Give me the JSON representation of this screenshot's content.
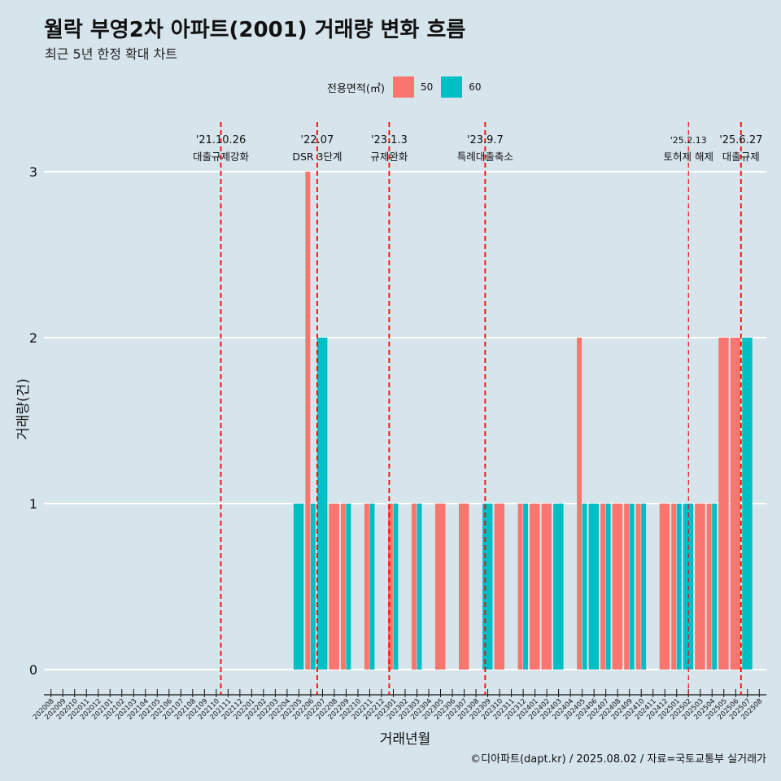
{
  "header": {
    "title": "월락 부영2차 아파트(2001) 거래량 변화 흐름",
    "subtitle": "최근 5년 한정 확대 차트"
  },
  "legend": {
    "title": "전용면적(㎡)",
    "items": [
      {
        "label": "50",
        "color": "#f8766d"
      },
      {
        "label": "60",
        "color": "#00bfc4"
      }
    ]
  },
  "caption": "©디아파트(dapt.kr) / 2025.08.02 / 자료=국토교통부 실거래가",
  "chart_data": {
    "type": "bar",
    "xlabel": "거래년월",
    "ylabel": "거래량(건)",
    "ylim": [
      0,
      3
    ],
    "y_ticks": [
      0,
      1,
      2,
      3
    ],
    "grid": true,
    "legend_position": "top",
    "categories": [
      "202008",
      "202009",
      "202010",
      "202011",
      "202012",
      "202101",
      "202102",
      "202103",
      "202104",
      "202105",
      "202106",
      "202107",
      "202108",
      "202109",
      "202110",
      "202111",
      "202112",
      "202201",
      "202202",
      "202203",
      "202204",
      "202205",
      "202206",
      "202207",
      "202208",
      "202209",
      "202210",
      "202211",
      "202212",
      "202301",
      "202302",
      "202303",
      "202304",
      "202305",
      "202306",
      "202307",
      "202308",
      "202309",
      "202310",
      "202311",
      "202312",
      "202401",
      "202402",
      "202403",
      "202404",
      "202405",
      "202406",
      "202407",
      "202408",
      "202409",
      "202410",
      "202411",
      "202412",
      "202501",
      "202502",
      "202503",
      "202504",
      "202505",
      "202506",
      "202507",
      "202508"
    ],
    "series": [
      {
        "name": "50",
        "color": "#f8766d",
        "values": [
          0,
          0,
          0,
          0,
          0,
          0,
          0,
          0,
          0,
          0,
          0,
          0,
          0,
          0,
          0,
          0,
          0,
          0,
          0,
          0,
          0,
          0,
          3,
          0,
          1,
          1,
          0,
          1,
          0,
          1,
          0,
          1,
          0,
          1,
          0,
          1,
          0,
          0,
          1,
          0,
          1,
          1,
          1,
          0,
          0,
          2,
          0,
          1,
          1,
          1,
          1,
          0,
          1,
          1,
          0,
          1,
          1,
          2,
          2,
          0,
          0
        ]
      },
      {
        "name": "60",
        "color": "#00bfc4",
        "values": [
          0,
          0,
          0,
          0,
          0,
          0,
          0,
          0,
          0,
          0,
          0,
          0,
          0,
          0,
          0,
          0,
          0,
          0,
          0,
          0,
          0,
          1,
          1,
          2,
          0,
          1,
          0,
          1,
          0,
          1,
          0,
          1,
          0,
          0,
          0,
          0,
          0,
          1,
          0,
          0,
          1,
          0,
          0,
          1,
          0,
          1,
          1,
          1,
          0,
          1,
          1,
          0,
          0,
          1,
          1,
          0,
          1,
          0,
          0,
          2,
          0
        ]
      }
    ],
    "annotations": [
      {
        "date": "'21.10.26",
        "label": "대출규제강화",
        "x": "202110",
        "offset": 0.84,
        "style": "major"
      },
      {
        "date": "'22.07",
        "label": "DSR 3단계",
        "x": "202207",
        "offset": 0.0,
        "style": "major"
      },
      {
        "date": "'23.1.3",
        "label": "규제완화",
        "x": "202301",
        "offset": 0.1,
        "style": "major"
      },
      {
        "date": "'23.9.7",
        "label": "특례대출축소",
        "x": "202309",
        "offset": 0.23,
        "style": "major"
      },
      {
        "date": "'25.2.13",
        "label": "토허제 해제",
        "x": "202502",
        "offset": 0.45,
        "style": "minor"
      },
      {
        "date": "'25.6.27",
        "label": "대출규제",
        "x": "202506",
        "offset": 0.9,
        "style": "major"
      }
    ]
  }
}
